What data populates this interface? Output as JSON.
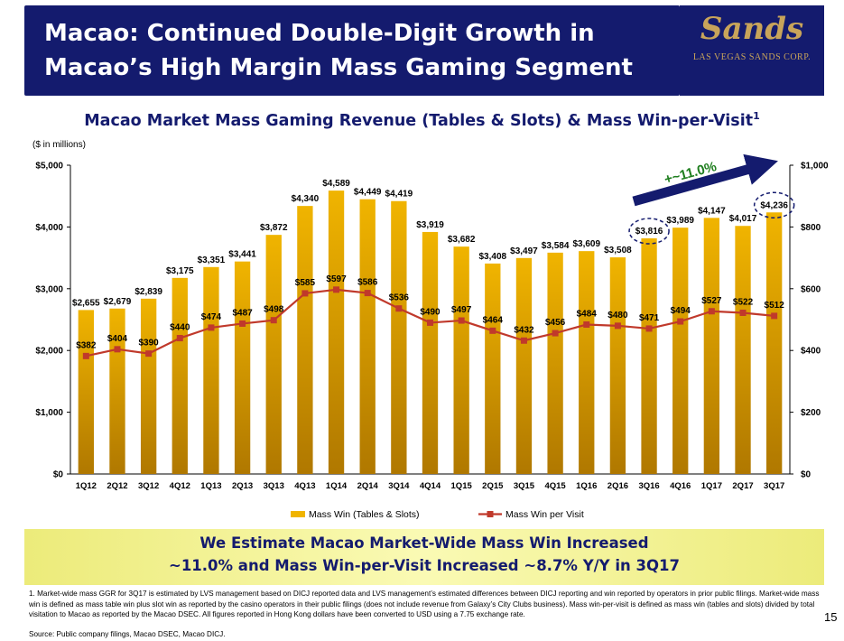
{
  "header": {
    "title_line1": "Macao: Continued Double-Digit Growth in",
    "title_line2": "Macao’s High Margin Mass Gaming Segment",
    "logo_word": "Sands",
    "logo_subtitle": "LAS VEGAS SANDS CORP."
  },
  "chart_title": "Macao Market Mass Gaming Revenue (Tables & Slots) & Mass Win-per-Visit",
  "chart_title_sup": "1",
  "unit_note": "($ in millions)",
  "growth_arrow_label": "+~11.0%",
  "colors": {
    "bar": "#F0B400",
    "line": "#C0392B",
    "navy": "#141B6E",
    "growth_text": "#1E7E1E"
  },
  "chart_data": {
    "type": "bar",
    "categories": [
      "1Q12",
      "2Q12",
      "3Q12",
      "4Q12",
      "1Q13",
      "2Q13",
      "3Q13",
      "4Q13",
      "1Q14",
      "2Q14",
      "3Q14",
      "4Q14",
      "1Q15",
      "2Q15",
      "3Q15",
      "4Q15",
      "1Q16",
      "2Q16",
      "3Q16",
      "4Q16",
      "1Q17",
      "2Q17",
      "3Q17"
    ],
    "series": [
      {
        "name": "Mass Win (Tables & Slots)",
        "type": "bar",
        "axis": "left",
        "values": [
          2655,
          2679,
          2839,
          3175,
          3351,
          3441,
          3872,
          4340,
          4589,
          4449,
          4419,
          3919,
          3682,
          3408,
          3497,
          3584,
          3609,
          3508,
          3816,
          3989,
          4147,
          4017,
          4236
        ],
        "labels": [
          "$2,655",
          "$2,679",
          "$2,839",
          "$3,175",
          "$3,351",
          "$3,441",
          "$3,872",
          "$4,340",
          "$4,589",
          "$4,449",
          "$4,419",
          "$3,919",
          "$3,682",
          "$3,408",
          "$3,497",
          "$3,584",
          "$3,609",
          "$3,508",
          "$3,816",
          "$3,989",
          "$4,147",
          "$4,017",
          "$4,236"
        ]
      },
      {
        "name": "Mass Win per Visit",
        "type": "line",
        "axis": "right",
        "values": [
          382,
          404,
          390,
          440,
          474,
          487,
          498,
          585,
          597,
          586,
          536,
          490,
          497,
          464,
          432,
          456,
          484,
          480,
          471,
          494,
          527,
          522,
          512
        ],
        "labels": [
          "$382",
          "$404",
          "$390",
          "$440",
          "$474",
          "$487",
          "$498",
          "$585",
          "$597",
          "$586",
          "$536",
          "$490",
          "$497",
          "$464",
          "$432",
          "$456",
          "$484",
          "$480",
          "$471",
          "$494",
          "$527",
          "$522",
          "$512"
        ]
      }
    ],
    "left_axis": {
      "range": [
        0,
        5000
      ],
      "ticks": [
        "$0",
        "$1,000",
        "$2,000",
        "$3,000",
        "$4,000",
        "$5,000"
      ]
    },
    "right_axis": {
      "range": [
        0,
        1000
      ],
      "ticks": [
        "$0",
        "$200",
        "$400",
        "$600",
        "$800",
        "$1,000"
      ]
    },
    "circled_categories": [
      "3Q16",
      "3Q17"
    ],
    "legend_position": "bottom"
  },
  "banner": {
    "line1": "We Estimate Macao Market-Wide Mass Win Increased",
    "line2": "~11.0% and Mass Win-per-Visit Increased ~8.7% Y/Y in 3Q17"
  },
  "footnote": "1. Market-wide mass GGR for 3Q17 is estimated by LVS management based on DICJ reported data and LVS management’s estimated differences between DICJ reporting and win reported by operators in prior public filings. Market-wide mass win is defined as mass table win plus slot win as reported by the casino operators in their public filings (does not include revenue from Galaxy’s City Clubs business). Mass win-per-visit is defined as mass win (tables and slots) divided by total visitation to Macao as reported by the Macao DSEC. All figures reported in Hong Kong dollars have been converted to USD using a 7.75 exchange rate.",
  "source": "Source: Public company filings, Macao DSEC, Macao DICJ.",
  "page_number": "15"
}
